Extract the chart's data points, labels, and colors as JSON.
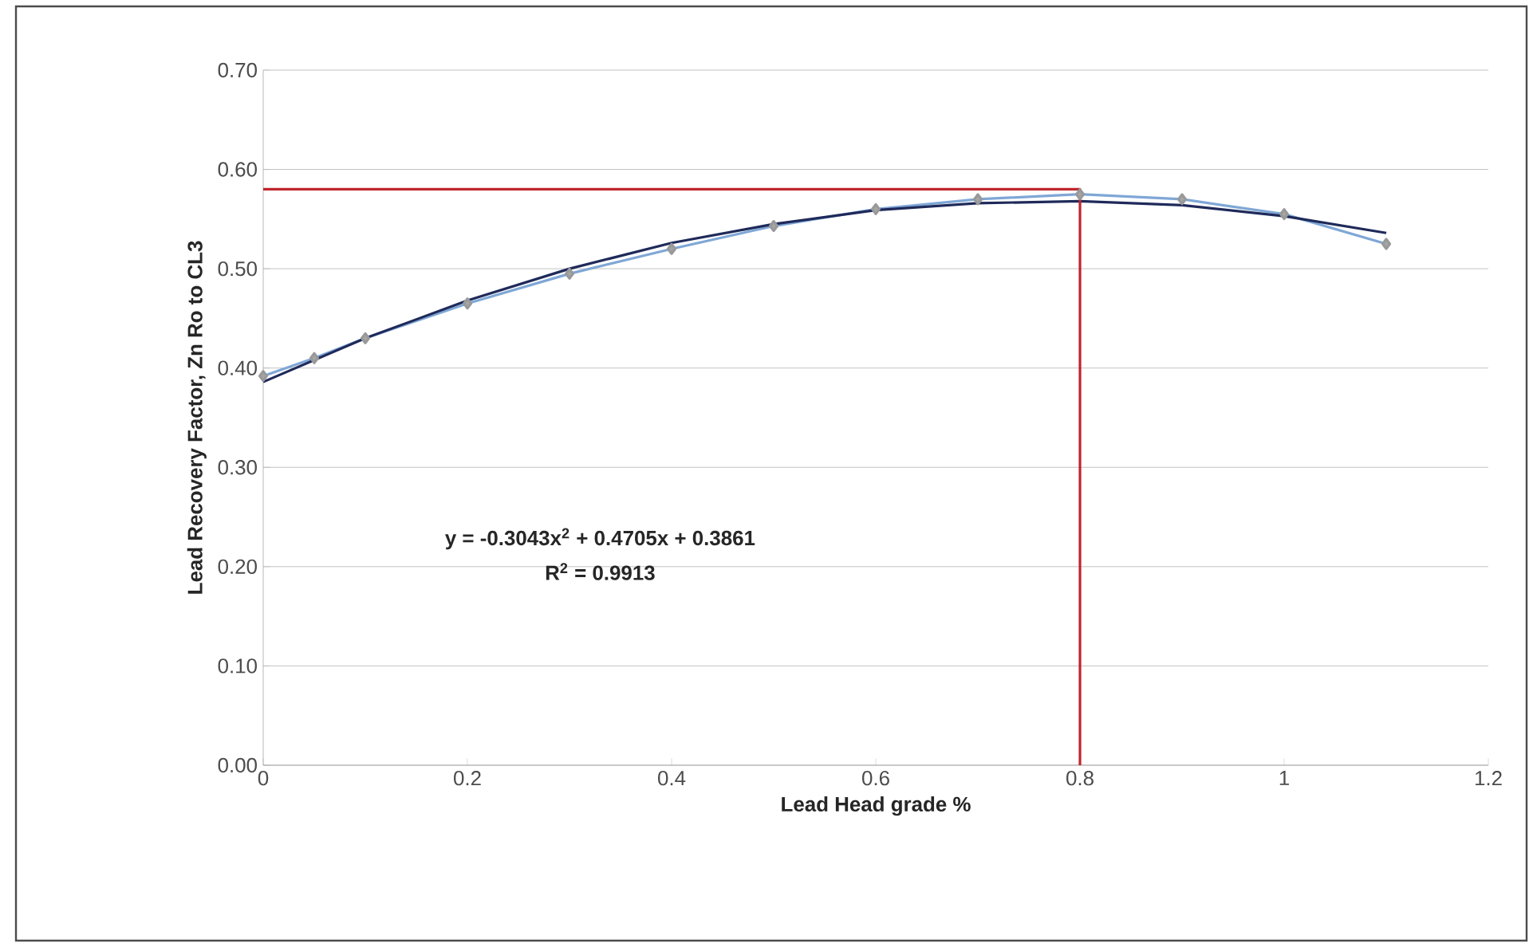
{
  "chart_data": {
    "type": "line",
    "xlabel": "Lead Head grade %",
    "ylabel": "Lead Recovery Factor, Zn Ro to CL3",
    "annotations": [
      "y = -0.3043x$^{2}$ + 0.4705x + 0.3861",
      "R$^{2}$ = 0.9913"
    ],
    "series": [
      {
        "color": "#7fa7d6",
        "marker": "diamond",
        "x": [
          0,
          0.05,
          0.1,
          0.2,
          0.3,
          0.4,
          0.5,
          0.6,
          0.7,
          0.8,
          0.9,
          1.0,
          1.1
        ],
        "values": [
          0.392,
          0.41,
          0.43,
          0.465,
          0.495,
          0.52,
          0.543,
          0.56,
          0.57,
          0.575,
          0.57,
          0.555,
          0.525
        ]
      },
      {
        "color": "#1f2a5a",
        "marker": "none",
        "x": [
          0,
          0.1,
          0.2,
          0.3,
          0.4,
          0.5,
          0.6,
          0.7,
          0.8,
          0.9,
          1.0,
          1.1
        ],
        "values": [
          0.386,
          0.43,
          0.468,
          0.5,
          0.526,
          0.545,
          0.559,
          0.566,
          0.568,
          0.564,
          0.553,
          0.536
        ]
      },
      {
        "color": "#c0262d",
        "marker": "none",
        "x": [
          0,
          0.8,
          0.8
        ],
        "values": [
          0.58,
          0.58,
          0
        ]
      }
    ],
    "xlim": [
      0,
      1.2
    ],
    "xticks": [
      0,
      0.2,
      0.4,
      0.6,
      0.8,
      1,
      1.2
    ],
    "ylim": [
      0,
      0.7
    ],
    "yticks": [
      {
        "value": 0,
        "label": "0.00"
      },
      {
        "value": 0.1,
        "label": "0.10"
      },
      {
        "value": 0.2,
        "label": "0.20"
      },
      {
        "value": 0.3,
        "label": "0.30"
      },
      {
        "value": 0.4,
        "label": "0.40"
      },
      {
        "value": 0.5,
        "label": "0.50"
      },
      {
        "value": 0.6,
        "label": "0.60"
      },
      {
        "value": 0.7,
        "label": "0.70"
      }
    ],
    "grid": "y"
  }
}
